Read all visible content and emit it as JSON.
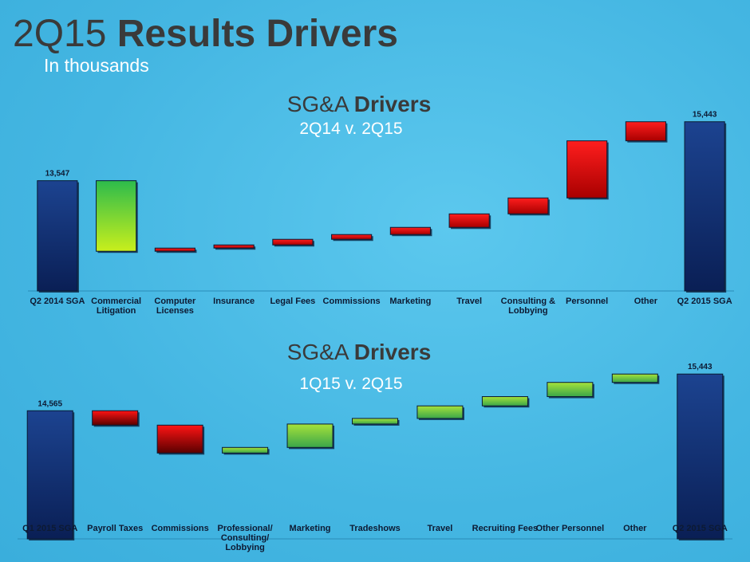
{
  "header": {
    "title_light": "2Q15",
    "title_bold": "Results Drivers",
    "subtitle": "In thousands"
  },
  "chart_data": [
    {
      "type": "waterfall",
      "title": {
        "light": "SG&A",
        "bold": "Drivers"
      },
      "subtitle": "2Q14 v. 2Q15",
      "categories": [
        "Q2 2014 SGA",
        "Commercial\nLitigation",
        "Computer\nLicenses",
        "Insurance",
        "Legal Fees",
        "Commissions",
        "Marketing",
        "Travel",
        "Consulting &\nLobbying",
        "Personnel",
        "Other",
        "Q2 2015 SGA"
      ],
      "measure": [
        "total",
        "relative",
        "relative",
        "relative",
        "relative",
        "relative",
        "relative",
        "relative",
        "relative",
        "relative",
        "relative",
        "total"
      ],
      "values": [
        13547,
        -2270,
        102,
        102,
        180,
        154,
        230,
        435,
        512,
        1837,
        614,
        15443
      ],
      "value_labels": [
        "13,547",
        null,
        null,
        null,
        null,
        null,
        null,
        null,
        null,
        null,
        null,
        "15,443"
      ],
      "ylim": [
        10000,
        16000
      ],
      "total_color": [
        "#1c4390",
        "#0a1f55"
      ],
      "increase_color": [
        "#ff1e1e",
        "#a80000"
      ],
      "decrease_color": [
        "#2dbb4c",
        "#c9ef1c"
      ]
    },
    {
      "type": "waterfall",
      "title": {
        "light": "SG&A",
        "bold": "Drivers"
      },
      "subtitle": "1Q15 v. 2Q15",
      "categories": [
        "Q1 2015 SGA",
        "Payroll Taxes",
        "Commissions",
        "Professional/\nConsulting/\nLobbying",
        "Marketing",
        "Tradeshows",
        "Travel",
        "Recruiting Fees",
        "Other Personnel",
        "Other",
        "Q2 2015 SGA"
      ],
      "measure": [
        "total",
        "relative",
        "relative",
        "relative",
        "relative",
        "relative",
        "relative",
        "relative",
        "relative",
        "relative",
        "total"
      ],
      "values": [
        14565,
        -344,
        -668,
        134,
        560,
        134,
        300,
        222,
        340,
        200,
        15443
      ],
      "value_labels": [
        "14,565",
        null,
        null,
        null,
        null,
        null,
        null,
        null,
        null,
        null,
        "15,443"
      ],
      "ylim": [
        11500,
        16000
      ],
      "total_color": [
        "#1c4390",
        "#0a1f55"
      ],
      "increase_color": [
        "#a6e23a",
        "#3aa64a"
      ],
      "decrease_color": [
        "#ff1414",
        "#5a0000"
      ]
    }
  ]
}
